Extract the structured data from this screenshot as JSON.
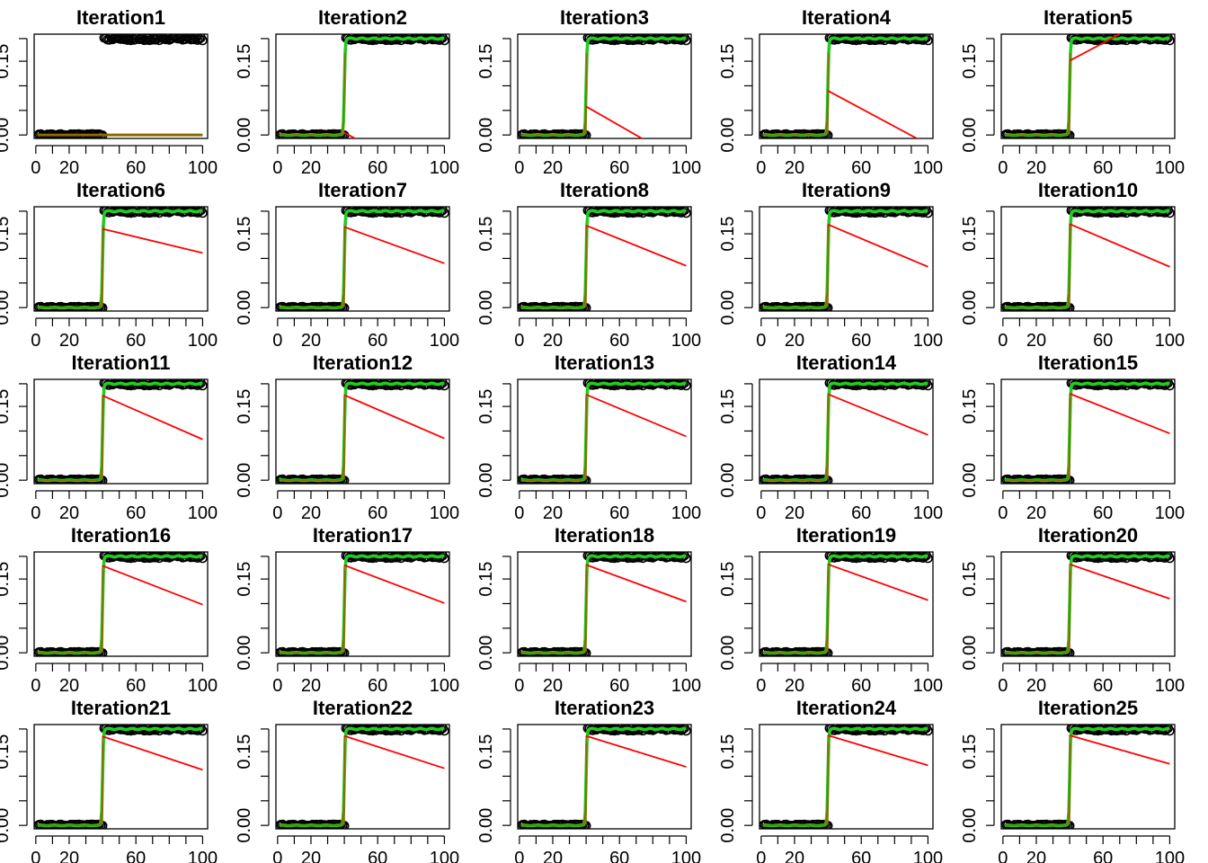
{
  "chart_data": {
    "type": "line",
    "layout": "5x5 small multiples",
    "x_ticks": [
      0,
      20,
      60,
      100
    ],
    "x_tick_labels": [
      "0",
      "20",
      "60",
      "100"
    ],
    "xlim": [
      -1,
      103
    ],
    "y_ticks": [
      0.0,
      0.15
    ],
    "y_tick_labels": [
      "0.00",
      "0.15"
    ],
    "ylim": [
      -0.007,
      0.205
    ],
    "points": {
      "description": "black open circles",
      "low_segment": {
        "x_from": 1,
        "x_to": 40,
        "y": 0.0,
        "noise": 0.003
      },
      "high_segment": {
        "x_from": 41,
        "x_to": 100,
        "y": 0.196,
        "noise": 0.004
      }
    },
    "colors": {
      "points": "#000000",
      "fit_green": "#22cc22",
      "fit_red": "#ff0000",
      "fit_overlap": "#8a6a00"
    },
    "panels": [
      {
        "title": "Iteration1",
        "green_fit": false,
        "red_line": {
          "x1": 1,
          "y1": 0.0,
          "x2": 100,
          "y2": 0.0
        }
      },
      {
        "title": "Iteration2",
        "green_fit": true,
        "red_line": {
          "x1": 40,
          "y1": 0.005,
          "x2": 48,
          "y2": -0.01
        }
      },
      {
        "title": "Iteration3",
        "green_fit": true,
        "red_line": {
          "x1": 40,
          "y1": 0.058,
          "x2": 75,
          "y2": -0.01
        }
      },
      {
        "title": "Iteration4",
        "green_fit": true,
        "red_line": {
          "x1": 40,
          "y1": 0.09,
          "x2": 95,
          "y2": -0.01
        }
      },
      {
        "title": "Iteration5",
        "green_fit": true,
        "red_line": {
          "x1": 40,
          "y1": 0.151,
          "x2": 70,
          "y2": 0.205
        }
      },
      {
        "title": "Iteration6",
        "green_fit": true,
        "red_line": {
          "x1": 40,
          "y1": 0.16,
          "x2": 100,
          "y2": 0.111
        }
      },
      {
        "title": "Iteration7",
        "green_fit": true,
        "red_line": {
          "x1": 40,
          "y1": 0.164,
          "x2": 100,
          "y2": 0.09
        }
      },
      {
        "title": "Iteration8",
        "green_fit": true,
        "red_line": {
          "x1": 40,
          "y1": 0.167,
          "x2": 100,
          "y2": 0.085
        }
      },
      {
        "title": "Iteration9",
        "green_fit": true,
        "red_line": {
          "x1": 40,
          "y1": 0.169,
          "x2": 100,
          "y2": 0.083
        }
      },
      {
        "title": "Iteration10",
        "green_fit": true,
        "red_line": {
          "x1": 40,
          "y1": 0.17,
          "x2": 100,
          "y2": 0.083
        }
      },
      {
        "title": "Iteration11",
        "green_fit": true,
        "red_line": {
          "x1": 40,
          "y1": 0.172,
          "x2": 100,
          "y2": 0.083
        }
      },
      {
        "title": "Iteration12",
        "green_fit": true,
        "red_line": {
          "x1": 40,
          "y1": 0.173,
          "x2": 100,
          "y2": 0.085
        }
      },
      {
        "title": "Iteration13",
        "green_fit": true,
        "red_line": {
          "x1": 40,
          "y1": 0.174,
          "x2": 100,
          "y2": 0.089
        }
      },
      {
        "title": "Iteration14",
        "green_fit": true,
        "red_line": {
          "x1": 40,
          "y1": 0.175,
          "x2": 100,
          "y2": 0.092
        }
      },
      {
        "title": "Iteration15",
        "green_fit": true,
        "red_line": {
          "x1": 40,
          "y1": 0.176,
          "x2": 100,
          "y2": 0.095
        }
      },
      {
        "title": "Iteration16",
        "green_fit": true,
        "red_line": {
          "x1": 40,
          "y1": 0.177,
          "x2": 100,
          "y2": 0.098
        }
      },
      {
        "title": "Iteration17",
        "green_fit": true,
        "red_line": {
          "x1": 40,
          "y1": 0.178,
          "x2": 100,
          "y2": 0.101
        }
      },
      {
        "title": "Iteration18",
        "green_fit": true,
        "red_line": {
          "x1": 40,
          "y1": 0.179,
          "x2": 100,
          "y2": 0.104
        }
      },
      {
        "title": "Iteration19",
        "green_fit": true,
        "red_line": {
          "x1": 40,
          "y1": 0.18,
          "x2": 100,
          "y2": 0.107
        }
      },
      {
        "title": "Iteration20",
        "green_fit": true,
        "red_line": {
          "x1": 40,
          "y1": 0.18,
          "x2": 100,
          "y2": 0.11
        }
      },
      {
        "title": "Iteration21",
        "green_fit": true,
        "red_line": {
          "x1": 40,
          "y1": 0.181,
          "x2": 100,
          "y2": 0.113
        }
      },
      {
        "title": "Iteration22",
        "green_fit": true,
        "red_line": {
          "x1": 40,
          "y1": 0.182,
          "x2": 100,
          "y2": 0.116
        }
      },
      {
        "title": "Iteration23",
        "green_fit": true,
        "red_line": {
          "x1": 40,
          "y1": 0.182,
          "x2": 100,
          "y2": 0.119
        }
      },
      {
        "title": "Iteration24",
        "green_fit": true,
        "red_line": {
          "x1": 40,
          "y1": 0.183,
          "x2": 100,
          "y2": 0.122
        }
      },
      {
        "title": "Iteration25",
        "green_fit": true,
        "red_line": {
          "x1": 40,
          "y1": 0.183,
          "x2": 100,
          "y2": 0.125
        }
      }
    ]
  }
}
